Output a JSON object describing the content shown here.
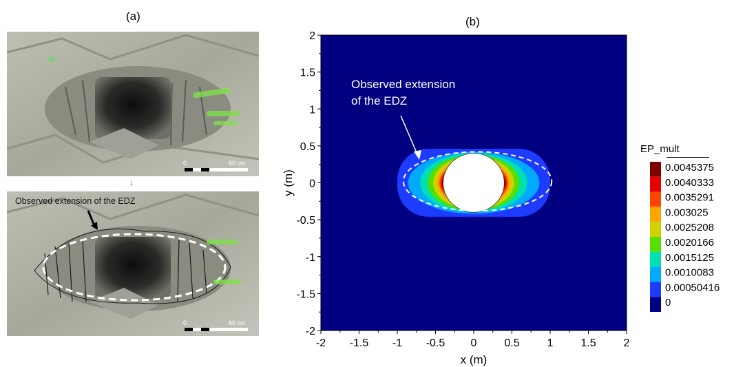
{
  "panel_a": {
    "label": "(a)",
    "scale_bar": {
      "start": "0",
      "end": "60 cm"
    },
    "annotation": "Observed  extension of the EDZ",
    "down_arrow": "↓"
  },
  "panel_b": {
    "label": "(b)"
  },
  "chart_data": {
    "type": "heatmap",
    "title": "",
    "xlabel": "x (m)",
    "ylabel": "y (m)",
    "xlim": [
      -2,
      2
    ],
    "ylim": [
      -2,
      2
    ],
    "xticks": [
      "-2",
      "-1.5",
      "-1",
      "-0.5",
      "0",
      "0.5",
      "1",
      "1.5",
      "2"
    ],
    "yticks": [
      "2",
      "1.5",
      "1",
      "0.5",
      "0",
      "-0.5",
      "-1",
      "-1.5",
      "-2"
    ],
    "annotation": [
      "Observed  extension",
      "of the EDZ"
    ],
    "legend": {
      "title": "EP_mult",
      "levels": [
        "0.0045375",
        "0.0040333",
        "0.0035291",
        "0.003025",
        "0.0025208",
        "0.0020166",
        "0.0015125",
        "0.0010083",
        "0.00050416",
        "0"
      ],
      "colors": [
        "#800000",
        "#e60000",
        "#ff4500",
        "#ffa500",
        "#cdd200",
        "#55e000",
        "#00e0b0",
        "#00aaff",
        "#1e3cff",
        "#000080"
      ]
    },
    "tunnel_radius": 0.4,
    "observed_edz": {
      "center": [
        0.05,
        0.02
      ],
      "semi_axis_x": 0.97,
      "semi_axis_y": 0.4
    },
    "grid": false
  }
}
